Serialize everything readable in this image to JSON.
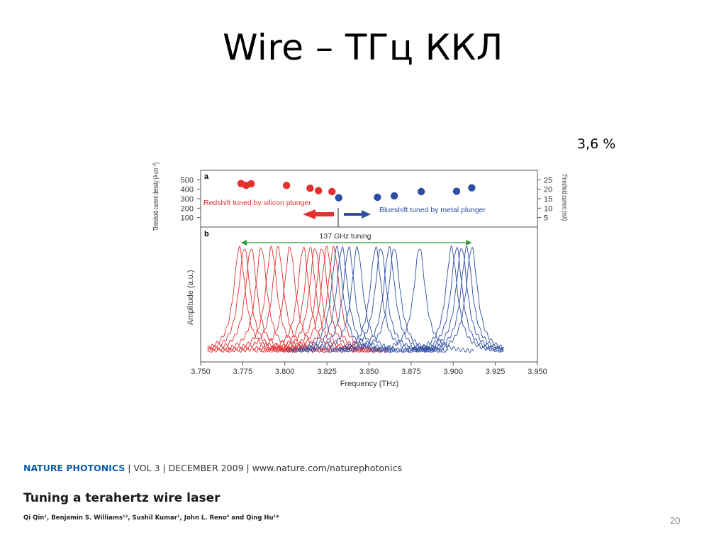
{
  "slide": {
    "title": "Wire – ТГц ККЛ",
    "percent_note": "3,6 %",
    "page_number": "20"
  },
  "citation": {
    "journal": "NATURE PHOTONICS",
    "details": " | VOL 3 | DECEMBER 2009 | www.nature.com/naturephotonics",
    "paper_title": "Tuning a terahertz wire laser",
    "authors": "Qi Qin¹, Benjamin S. Williams¹², Sushil Kumar¹, John L. Reno³ and Qing Hu¹*"
  },
  "colors": {
    "red": "#e53030",
    "blue": "#2d4ea3",
    "green": "#2e9a3e"
  },
  "chart_data": [
    {
      "type": "scatter",
      "panel_label": "a",
      "ylabel": "Threshold current density (A cm⁻²)",
      "ylabel_right": "Threshold current (mA)",
      "yticks_left": [
        100,
        200,
        300,
        400,
        500
      ],
      "yticks_right": [
        5,
        10,
        15,
        20,
        25
      ],
      "ylim": [
        0,
        600
      ],
      "annotations": {
        "red": "Redshift tuned by silicon plunger",
        "blue": "Blueshift tuned by metal plunger"
      },
      "series": [
        {
          "color": "red",
          "x": [
            3.774,
            3.777,
            3.78,
            3.801,
            3.815,
            3.82,
            3.828
          ],
          "y": [
            460,
            440,
            458,
            440,
            410,
            385,
            375
          ]
        },
        {
          "color": "blue",
          "x": [
            3.832,
            3.855,
            3.865,
            3.881,
            3.902,
            3.911
          ],
          "y": [
            310,
            315,
            330,
            375,
            378,
            415
          ]
        }
      ]
    },
    {
      "type": "line",
      "panel_label": "b",
      "xlabel": "Frequency (THz)",
      "ylabel": "Amplitude (a.u.)",
      "xlim": [
        3.75,
        3.95
      ],
      "xticks": [
        "3.750",
        "3.775",
        "3.800",
        "3.825",
        "3.850",
        "3.875",
        "3.900",
        "3.925",
        "3.950"
      ],
      "annotation": "137 GHz tuning",
      "tuning_range": [
        3.774,
        3.911
      ],
      "series": [
        {
          "color": "red",
          "peaks": [
            3.773,
            3.776,
            3.78,
            3.786,
            3.792,
            3.796,
            3.803,
            3.811,
            3.815,
            3.818,
            3.822,
            3.825,
            3.829
          ]
        },
        {
          "color": "blue",
          "peaks": [
            3.831,
            3.834,
            3.838,
            3.843,
            3.854,
            3.857,
            3.862,
            3.865,
            3.88,
            3.899,
            3.902,
            3.905,
            3.908,
            3.911
          ]
        }
      ]
    }
  ]
}
